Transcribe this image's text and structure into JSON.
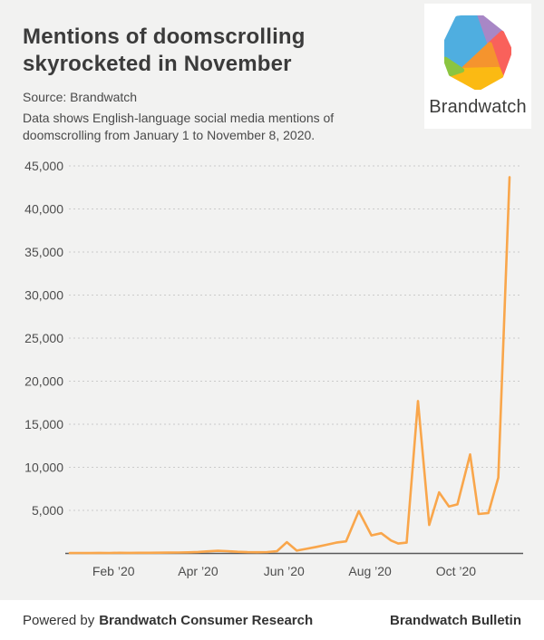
{
  "page": {
    "background": "#f2f2f1",
    "card_background": "#ffffff"
  },
  "header": {
    "title": "Mentions of doomscrolling skyrocketed in November",
    "source": "Source: Brandwatch",
    "description": "Data shows English-language social media mentions of doomscrolling from January 1 to November 8, 2020."
  },
  "logo": {
    "wordmark": "Brandwatch",
    "facet_colors": {
      "blue": "#4FAEE0",
      "purple": "#A887C6",
      "red": "#F9615B",
      "orange": "#F5942E",
      "yellow": "#FBBA13",
      "green": "#8BC540"
    }
  },
  "chart_data": {
    "type": "line",
    "title": "Mentions of doomscrolling skyrocketed in November",
    "series_name": "English-language social media mentions of doomscrolling",
    "x_range_note": "January 1 to November 8, 2020",
    "line_color": "#F9A64B",
    "grid_color": "#cbcbcb",
    "axis_color": "#59595b",
    "label_color": "#4d4d4d",
    "ylim": [
      0,
      45000
    ],
    "grid": "horizontal-dotted",
    "legend": "none",
    "y_ticks": [
      5000,
      10000,
      15000,
      20000,
      25000,
      30000,
      35000,
      40000,
      45000
    ],
    "x_ticks": [
      {
        "label": "Feb ’20",
        "day": 31
      },
      {
        "label": "Apr ’20",
        "day": 91
      },
      {
        "label": "Jun ’20",
        "day": 152
      },
      {
        "label": "Aug ’20",
        "day": 213
      },
      {
        "label": "Oct ’20",
        "day": 274
      }
    ],
    "points": [
      {
        "date": "Jan 1",
        "day": 0,
        "value": 40
      },
      {
        "date": "Jan 8",
        "day": 7,
        "value": 55
      },
      {
        "date": "Jan 15",
        "day": 14,
        "value": 45
      },
      {
        "date": "Jan 22",
        "day": 21,
        "value": 60
      },
      {
        "date": "Jan 29",
        "day": 28,
        "value": 55
      },
      {
        "date": "Feb 5",
        "day": 35,
        "value": 70
      },
      {
        "date": "Feb 12",
        "day": 42,
        "value": 60
      },
      {
        "date": "Feb 19",
        "day": 49,
        "value": 75
      },
      {
        "date": "Feb 26",
        "day": 56,
        "value": 70
      },
      {
        "date": "Mar 4",
        "day": 63,
        "value": 85
      },
      {
        "date": "Mar 11",
        "day": 70,
        "value": 95
      },
      {
        "date": "Mar 18",
        "day": 77,
        "value": 110
      },
      {
        "date": "Mar 25",
        "day": 84,
        "value": 130
      },
      {
        "date": "Apr 1",
        "day": 91,
        "value": 170
      },
      {
        "date": "Apr 8",
        "day": 98,
        "value": 240
      },
      {
        "date": "Apr 15",
        "day": 105,
        "value": 310
      },
      {
        "date": "Apr 22",
        "day": 112,
        "value": 260
      },
      {
        "date": "Apr 29",
        "day": 119,
        "value": 190
      },
      {
        "date": "May 6",
        "day": 126,
        "value": 150
      },
      {
        "date": "May 13",
        "day": 133,
        "value": 140
      },
      {
        "date": "May 20",
        "day": 140,
        "value": 160
      },
      {
        "date": "May 27",
        "day": 147,
        "value": 260
      },
      {
        "date": "Jun 3",
        "day": 154,
        "value": 1300
      },
      {
        "date": "Jun 10",
        "day": 161,
        "value": 330
      },
      {
        "date": "Jun 17",
        "day": 168,
        "value": 540
      },
      {
        "date": "Jun 24",
        "day": 175,
        "value": 760
      },
      {
        "date": "Jul 1",
        "day": 182,
        "value": 1000
      },
      {
        "date": "Jul 8",
        "day": 189,
        "value": 1250
      },
      {
        "date": "Jul 15",
        "day": 196,
        "value": 1400
      },
      {
        "date": "Jul 24",
        "day": 205,
        "value": 4900
      },
      {
        "date": "Aug 2",
        "day": 214,
        "value": 2100
      },
      {
        "date": "Aug 9",
        "day": 221,
        "value": 2350
      },
      {
        "date": "Aug 16",
        "day": 228,
        "value": 1500
      },
      {
        "date": "Aug 21",
        "day": 233,
        "value": 1150
      },
      {
        "date": "Aug 27",
        "day": 239,
        "value": 1250
      },
      {
        "date": "Sep 4",
        "day": 247,
        "value": 17700
      },
      {
        "date": "Sep 11",
        "day": 255,
        "value": 3300
      },
      {
        "date": "Sep 18",
        "day": 262,
        "value": 7100
      },
      {
        "date": "Sep 25",
        "day": 269,
        "value": 5450
      },
      {
        "date": "Oct 1",
        "day": 275,
        "value": 5700
      },
      {
        "date": "Oct 10",
        "day": 284,
        "value": 11500
      },
      {
        "date": "Oct 16",
        "day": 290,
        "value": 4580
      },
      {
        "date": "Oct 23",
        "day": 297,
        "value": 4700
      },
      {
        "date": "Oct 30",
        "day": 304,
        "value": 8800
      },
      {
        "date": "Nov 8",
        "day": 312,
        "value": 43700
      }
    ]
  },
  "footer": {
    "powered_by": "Powered by",
    "powered_by_org": "Brandwatch Consumer Research",
    "right_text": "Brandwatch Bulletin"
  }
}
